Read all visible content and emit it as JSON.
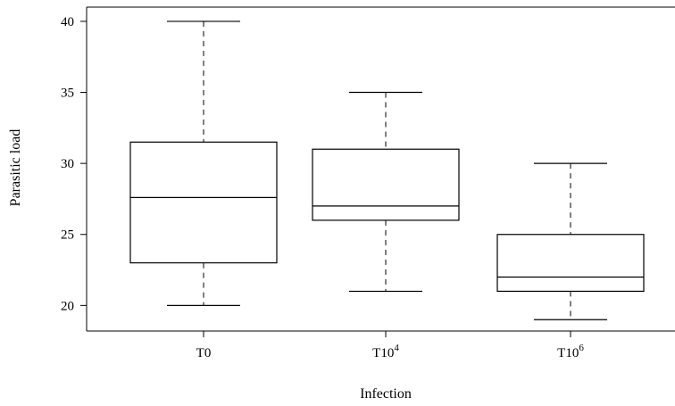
{
  "chart_data": {
    "type": "box",
    "xlabel": "Infection",
    "ylabel": "Parasitic load",
    "ylim": [
      18.2,
      41.0
    ],
    "yticks": [
      20,
      25,
      30,
      35,
      40
    ],
    "categories": [
      {
        "base": "T0",
        "sup": ""
      },
      {
        "base": "T10",
        "sup": "4"
      },
      {
        "base": "T10",
        "sup": "6"
      }
    ],
    "boxes": [
      {
        "category": "T0",
        "whisker_low": 20,
        "q1": 23,
        "median": 27.6,
        "q3": 31.5,
        "whisker_high": 40
      },
      {
        "category": "T10^4",
        "whisker_low": 21,
        "q1": 26,
        "median": 27,
        "q3": 31,
        "whisker_high": 35
      },
      {
        "category": "T10^6",
        "whisker_low": 19,
        "q1": 21,
        "median": 22,
        "q3": 25,
        "whisker_high": 30
      }
    ],
    "grid": false,
    "legend": "none"
  }
}
